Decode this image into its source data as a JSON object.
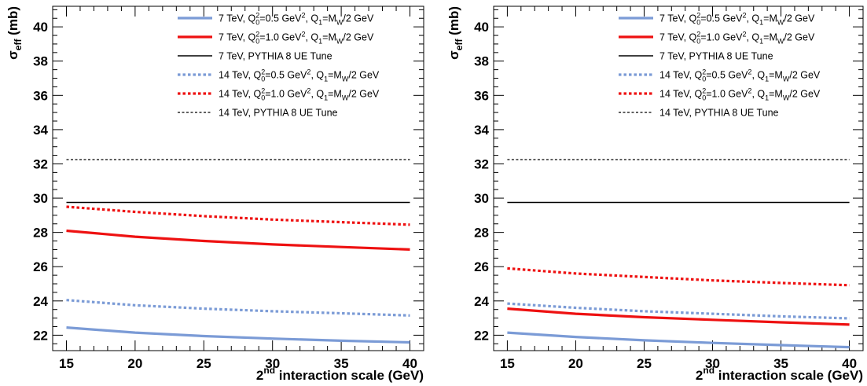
{
  "chart_data": [
    {
      "type": "line",
      "xlabel": "2nd interaction scale (GeV)",
      "ylabel": "σeff (mb)",
      "xlim": [
        14,
        41
      ],
      "ylim": [
        21.1,
        41.2
      ],
      "xticks": [
        15,
        20,
        25,
        30,
        35,
        40
      ],
      "yticks": [
        22,
        24,
        26,
        28,
        30,
        32,
        34,
        36,
        38,
        40
      ],
      "grid": false,
      "legend": "top-right",
      "series": [
        {
          "name": "7 TeV, Q0²=0.5 GeV², Q1=MW/2 GeV",
          "color": "#7b9bd6",
          "style": "solid-thick",
          "x": [
            15,
            20,
            25,
            30,
            35,
            40
          ],
          "values": [
            22.45,
            22.15,
            21.95,
            21.8,
            21.68,
            21.58
          ]
        },
        {
          "name": "7 TeV, Q0²=1.0 GeV², Q1=MW/2 GeV",
          "color": "#ee1111",
          "style": "solid-thick",
          "x": [
            15,
            20,
            25,
            30,
            35,
            40
          ],
          "values": [
            28.1,
            27.75,
            27.5,
            27.3,
            27.15,
            27.0
          ]
        },
        {
          "name": "7 TeV, PYTHIA 8 UE Tune",
          "color": "#000000",
          "style": "solid-thin",
          "x": [
            15,
            40
          ],
          "values": [
            29.75,
            29.75
          ]
        },
        {
          "name": "14 TeV, Q0²=0.5 GeV², Q1=MW/2 GeV",
          "color": "#7b9bd6",
          "style": "dotted",
          "x": [
            15,
            20,
            25,
            30,
            35,
            40
          ],
          "values": [
            24.05,
            23.75,
            23.55,
            23.4,
            23.28,
            23.15
          ]
        },
        {
          "name": "14 TeV, Q0²=1.0 GeV², Q1=MW/2 GeV",
          "color": "#ee1111",
          "style": "dotted",
          "x": [
            15,
            20,
            25,
            30,
            35,
            40
          ],
          "values": [
            29.5,
            29.2,
            28.95,
            28.75,
            28.6,
            28.45
          ]
        },
        {
          "name": "14 TeV, PYTHIA 8 UE Tune",
          "color": "#000000",
          "style": "dashed-thin",
          "x": [
            15,
            40
          ],
          "values": [
            32.25,
            32.25
          ]
        }
      ]
    },
    {
      "type": "line",
      "xlabel": "2nd interaction scale (GeV)",
      "ylabel": "σeff (mb)",
      "xlim": [
        14,
        41
      ],
      "ylim": [
        21.1,
        41.2
      ],
      "xticks": [
        15,
        20,
        25,
        30,
        35,
        40
      ],
      "yticks": [
        22,
        24,
        26,
        28,
        30,
        32,
        34,
        36,
        38,
        40
      ],
      "grid": false,
      "legend": "top-right",
      "series": [
        {
          "name": "7 TeV, Q0²=0.5 GeV², Q1=MW/2 GeV",
          "color": "#7b9bd6",
          "style": "solid-thick",
          "x": [
            15,
            20,
            25,
            30,
            35,
            40
          ],
          "values": [
            22.15,
            21.9,
            21.7,
            21.55,
            21.42,
            21.3
          ]
        },
        {
          "name": "7 TeV, Q0²=1.0 GeV², Q1=MW/2 GeV",
          "color": "#ee1111",
          "style": "solid-thick",
          "x": [
            15,
            20,
            25,
            30,
            35,
            40
          ],
          "values": [
            23.55,
            23.25,
            23.05,
            22.9,
            22.75,
            22.62
          ]
        },
        {
          "name": "7 TeV, PYTHIA 8 UE Tune",
          "color": "#000000",
          "style": "solid-thin",
          "x": [
            15,
            40
          ],
          "values": [
            29.75,
            29.75
          ]
        },
        {
          "name": "14 TeV, Q0²=0.5 GeV², Q1=MW/2 GeV",
          "color": "#7b9bd6",
          "style": "dotted",
          "x": [
            15,
            20,
            25,
            30,
            35,
            40
          ],
          "values": [
            23.85,
            23.6,
            23.4,
            23.25,
            23.1,
            22.98
          ]
        },
        {
          "name": "14 TeV, Q0²=1.0 GeV², Q1=MW/2 GeV",
          "color": "#ee1111",
          "style": "dotted",
          "x": [
            15,
            20,
            25,
            30,
            35,
            40
          ],
          "values": [
            25.9,
            25.6,
            25.4,
            25.2,
            25.05,
            24.92
          ]
        },
        {
          "name": "14 TeV, PYTHIA 8 UE Tune",
          "color": "#000000",
          "style": "dashed-thin",
          "x": [
            15,
            40
          ],
          "values": [
            32.25,
            32.25
          ]
        }
      ]
    }
  ],
  "legend_rich": [
    {
      "prefix": "7 TeV, Q",
      "sub0": "0",
      "sup0": "2",
      "mid": "=0.5 GeV",
      "sup1": "2",
      "mid2": ", Q",
      "sub1": "1",
      "mid3": "=M",
      "sub2": "W",
      "suffix": "/2 GeV"
    },
    {
      "prefix": "7 TeV, Q",
      "sub0": "0",
      "sup0": "2",
      "mid": "=1.0 GeV",
      "sup1": "2",
      "mid2": ", Q",
      "sub1": "1",
      "mid3": "=M",
      "sub2": "W",
      "suffix": "/2 GeV"
    },
    {
      "plain": "7 TeV, PYTHIA 8 UE Tune"
    },
    {
      "prefix": "14 TeV, Q",
      "sub0": "0",
      "sup0": "2",
      "mid": "=0.5 GeV",
      "sup1": "2",
      "mid2": ", Q",
      "sub1": "1",
      "mid3": "=M",
      "sub2": "W",
      "suffix": "/2 GeV"
    },
    {
      "prefix": "14 TeV, Q",
      "sub0": "0",
      "sup0": "2",
      "mid": "=1.0 GeV",
      "sup1": "2",
      "mid2": ", Q",
      "sub1": "1",
      "mid3": "=M",
      "sub2": "W",
      "suffix": "/2 GeV"
    },
    {
      "plain": "14 TeV, PYTHIA 8 UE Tune"
    }
  ],
  "axis_text": {
    "x_sup": "2",
    "x_sup_suffix": "nd",
    "x_rest": " interaction scale (GeV)",
    "y_main": "σ",
    "y_sub": "eff",
    "y_rest": " (mb)"
  }
}
